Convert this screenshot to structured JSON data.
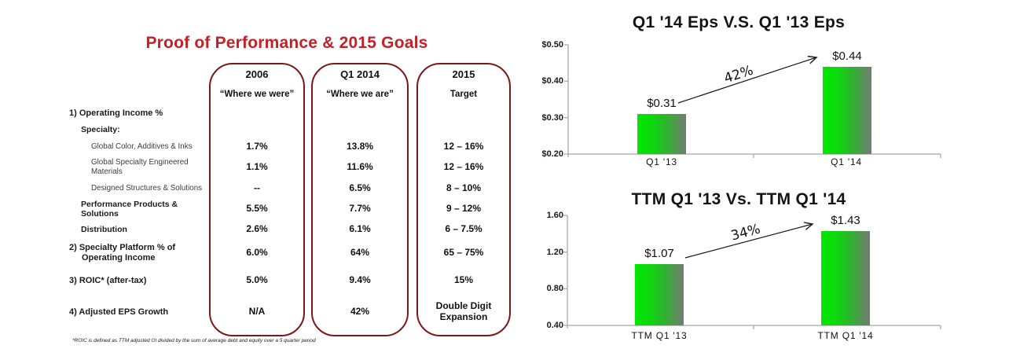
{
  "table": {
    "title": "Proof of Performance & 2015 Goals",
    "columns": [
      {
        "year": "2006",
        "subtitle": "“Where we were”"
      },
      {
        "year": "Q1 2014",
        "subtitle": "“Where we are”"
      },
      {
        "year": "2015",
        "subtitle": "Target"
      }
    ],
    "rows": [
      {
        "label": "1) Operating Income %",
        "indent": 0,
        "numbered": true,
        "bold": true,
        "values": [
          "",
          "",
          ""
        ]
      },
      {
        "label": "Specialty:",
        "indent": 1,
        "numbered": false,
        "bold": true,
        "values": [
          "",
          "",
          ""
        ]
      },
      {
        "label": "Global Color, Additives & Inks",
        "indent": 2,
        "numbered": false,
        "bold": false,
        "values": [
          "1.7%",
          "13.8%",
          "12 – 16%"
        ]
      },
      {
        "label": "Global Specialty Engineered Materials",
        "indent": 2,
        "numbered": false,
        "bold": false,
        "values": [
          "1.1%",
          "11.6%",
          "12 – 16%"
        ]
      },
      {
        "label": "Designed Structures & Solutions",
        "indent": 2,
        "numbered": false,
        "bold": false,
        "values": [
          "--",
          "6.5%",
          "8 – 10%"
        ]
      },
      {
        "label": "Performance Products & Solutions",
        "indent": 1,
        "numbered": false,
        "bold": true,
        "values": [
          "5.5%",
          "7.7%",
          "9 – 12%"
        ]
      },
      {
        "label": "Distribution",
        "indent": 1,
        "numbered": false,
        "bold": true,
        "values": [
          "2.6%",
          "6.1%",
          "6 – 7.5%"
        ]
      },
      {
        "label": "2) Specialty Platform % of Operating Income",
        "indent": 0,
        "numbered": true,
        "bold": true,
        "values": [
          "6.0%",
          "64%",
          "65 – 75%"
        ]
      },
      {
        "label": "3) ROIC* (after-tax)",
        "indent": 0,
        "numbered": true,
        "bold": true,
        "values": [
          "5.0%",
          "9.4%",
          "15%"
        ]
      },
      {
        "label": "4) Adjusted EPS Growth",
        "indent": 0,
        "numbered": true,
        "bold": true,
        "values": [
          "N/A",
          "42%",
          "Double Digit Expansion"
        ]
      }
    ],
    "footnote": "*ROIC is defined as TTM adjusted OI divided by the sum of average debt and equity over a 5 quarter period"
  },
  "chart_data": [
    {
      "type": "bar",
      "title": "Q1 '14 Eps V.S. Q1 '13 Eps",
      "categories": [
        "Q1 '13",
        "Q1 '14"
      ],
      "values": [
        0.31,
        0.44
      ],
      "value_labels": [
        "$0.31",
        "$0.44"
      ],
      "yticks": [
        "$0.50",
        "$0.40",
        "$0.30",
        "$0.20"
      ],
      "ylim": [
        0.2,
        0.5
      ],
      "annotation": "42%",
      "grid": false,
      "legend": "none",
      "bar_gradient": [
        "#00E800",
        "#6F7F6F"
      ]
    },
    {
      "type": "bar",
      "title": "TTM Q1 '13 Vs. TTM Q1 '14",
      "categories": [
        "TTM Q1 '13",
        "TTM Q1 '14"
      ],
      "values": [
        1.07,
        1.43
      ],
      "value_labels": [
        "$1.07",
        "$1.43"
      ],
      "yticks": [
        "1.60",
        "1.20",
        "0.80",
        "0.40"
      ],
      "ylim": [
        0.4,
        1.6
      ],
      "annotation": "34%",
      "grid": false,
      "legend": "none",
      "bar_gradient": [
        "#00E800",
        "#6F7F6F"
      ]
    }
  ],
  "colors": {
    "title_red": "#C42127",
    "column_border_maroon": "#7C181B",
    "axis_gray": "#A3A3A3",
    "bar_green_start": "#00E800",
    "bar_green_end": "#6F7F6F",
    "background": "#FFFFFF"
  }
}
